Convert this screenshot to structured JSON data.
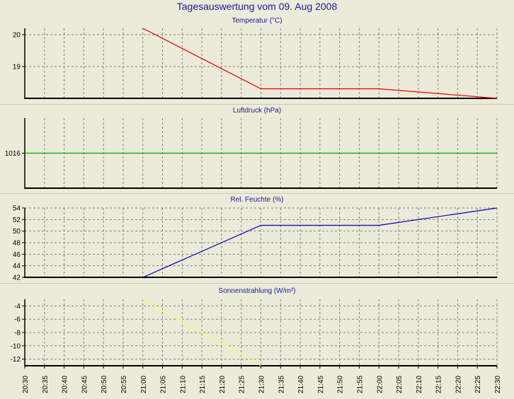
{
  "title": "Tagesauswertung vom 09. Aug 2008",
  "x_ticks": [
    "20:30",
    "20:35",
    "20:40",
    "20:45",
    "20:50",
    "20:55",
    "21:00",
    "21:05",
    "21:10",
    "21:15",
    "21:20",
    "21:25",
    "21:30",
    "21:35",
    "21:40",
    "21:45",
    "21:50",
    "21:55",
    "22:00",
    "22:05",
    "22:10",
    "22:15",
    "22:20",
    "22:25",
    "22:30"
  ],
  "chart_data": [
    {
      "type": "line",
      "title": "Temperatur (°C)",
      "color": "#e00000",
      "x": [
        "21:00",
        "21:30",
        "22:00",
        "22:30"
      ],
      "values": [
        20.2,
        18.3,
        18.3,
        18.0
      ],
      "ylim": [
        18.0,
        20.2
      ],
      "yticks": [
        19,
        20
      ],
      "xlim": [
        "20:30",
        "22:30"
      ],
      "grid": true
    },
    {
      "type": "line",
      "title": "Luftdruck (hPa)",
      "color": "#00b000",
      "x": [
        "20:30",
        "22:30"
      ],
      "values": [
        1016,
        1016
      ],
      "ylim": [
        1015,
        1017
      ],
      "yticks": [
        1016
      ],
      "xlim": [
        "20:30",
        "22:30"
      ],
      "grid": true
    },
    {
      "type": "line",
      "title": "Rel. Feuchte (%)",
      "color": "#0000b0",
      "x": [
        "21:00",
        "21:30",
        "22:00",
        "22:30"
      ],
      "values": [
        42,
        51,
        51,
        54
      ],
      "ylim": [
        42,
        54
      ],
      "yticks": [
        42,
        44,
        46,
        48,
        50,
        52,
        54
      ],
      "xlim": [
        "20:30",
        "22:30"
      ],
      "grid": true
    },
    {
      "type": "line",
      "title": "Sonnenstrahlung (W/m²)",
      "color": "#ffff66",
      "x": [
        "21:00",
        "21:30"
      ],
      "values": [
        -3,
        -13
      ],
      "ylim": [
        -13,
        -3
      ],
      "yticks": [
        -12,
        -10,
        -8,
        -6,
        -4
      ],
      "xlim": [
        "20:30",
        "22:30"
      ],
      "grid": true
    }
  ]
}
